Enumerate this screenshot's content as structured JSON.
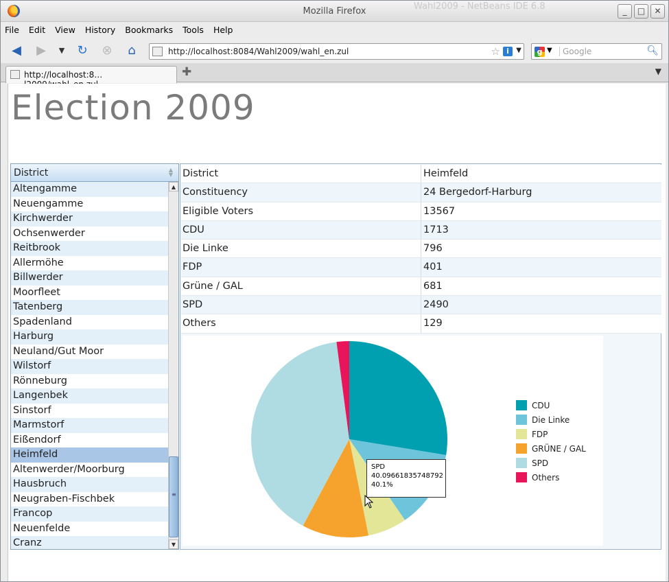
{
  "window": {
    "title": "Mozilla Firefox",
    "background_title": "Wahl2009 - NetBeans IDE 6.8",
    "controls": [
      "_",
      "□",
      "✕"
    ]
  },
  "menu": [
    "File",
    "Edit",
    "View",
    "History",
    "Bookmarks",
    "Tools",
    "Help"
  ],
  "nav": {
    "url": "http://localhost:8084/Wahl2009/wahl_en.zul",
    "search_placeholder": "Google"
  },
  "tabs": [
    {
      "label": "http://localhost:8…l2009/wahl_en.zul"
    }
  ],
  "page": {
    "title": "Election 2009",
    "district_header": "District",
    "districts": [
      "Altengamme",
      "Neuengamme",
      "Kirchwerder",
      "Ochsenwerder",
      "Reitbrook",
      "Allermöhe",
      "Billwerder",
      "Moorfleet",
      "Tatenberg",
      "Spadenland",
      "Harburg",
      "Neuland/Gut Moor",
      "Wilstorf",
      "Rönneburg",
      "Langenbek",
      "Sinstorf",
      "Marmstorf",
      "Eißendorf",
      "Heimfeld",
      "Altenwerder/Moorburg",
      "Hausbruch",
      "Neugraben-Fischbek",
      "Francop",
      "Neuenfelde",
      "Cranz"
    ],
    "selected_index": 18,
    "details": [
      {
        "key": "District",
        "value": "Heimfeld"
      },
      {
        "key": "Constituency",
        "value": "24 Bergedorf-Harburg"
      },
      {
        "key": "Eligible Voters",
        "value": "13567"
      },
      {
        "key": "CDU",
        "value": "1713"
      },
      {
        "key": "Die Linke",
        "value": "796"
      },
      {
        "key": "FDP",
        "value": "401"
      },
      {
        "key": "Grüne / GAL",
        "value": "681"
      },
      {
        "key": "SPD",
        "value": "2490"
      },
      {
        "key": "Others",
        "value": "129"
      }
    ]
  },
  "chart_data": {
    "type": "pie",
    "categories": [
      "CDU",
      "Die Linke",
      "FDP",
      "GRÜNE / GAL",
      "SPD",
      "Others"
    ],
    "values": [
      1713,
      796,
      401,
      681,
      2490,
      129
    ],
    "colors": [
      "#00a0b0",
      "#6ec4db",
      "#e3e697",
      "#f5a32c",
      "#afdce2",
      "#e9155a"
    ],
    "legend": "right",
    "tooltip": {
      "label": "SPD",
      "value": "40.09661835748792",
      "percent": "40.1%"
    }
  }
}
